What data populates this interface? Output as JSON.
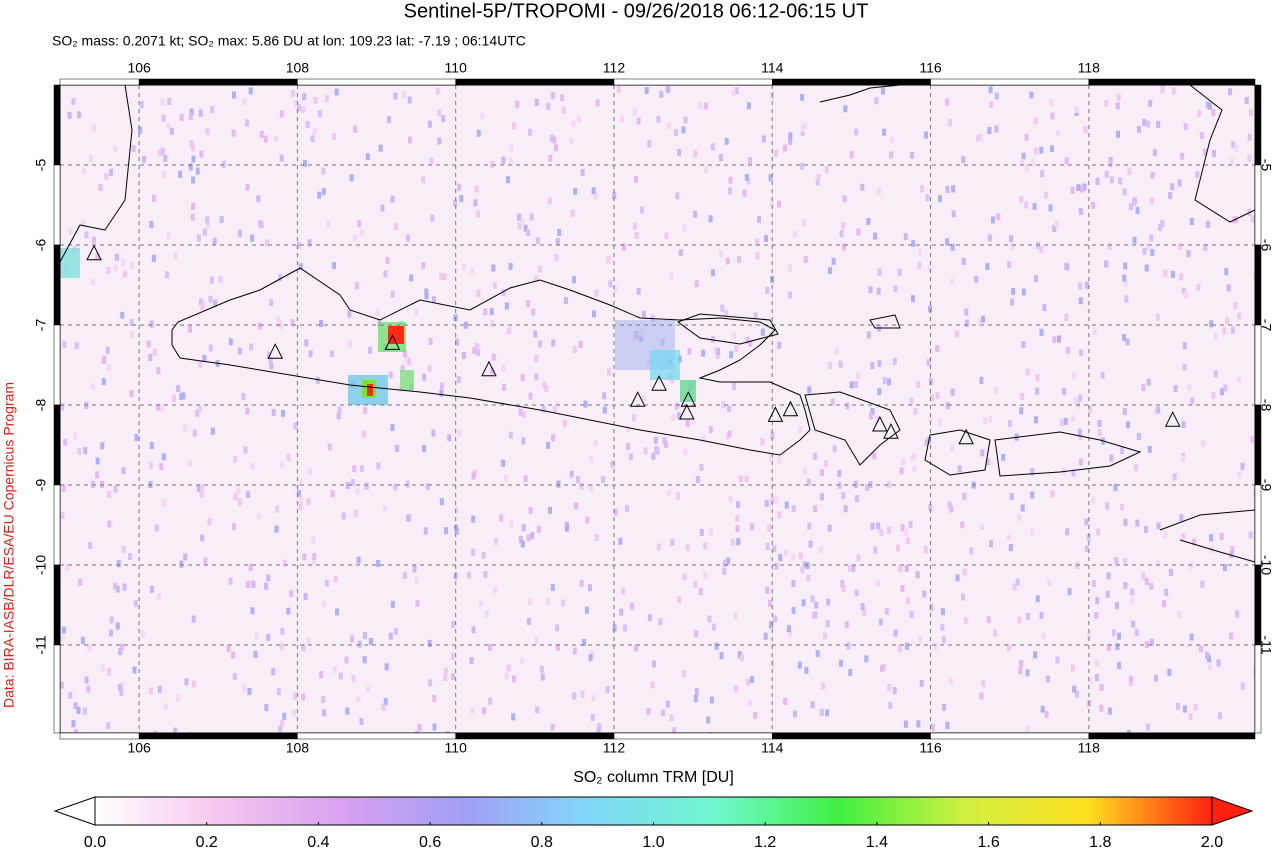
{
  "chart_data": {
    "type": "map",
    "title": "Sentinel-5P/TROPOMI - 09/26/2018 06:12-06:15 UT",
    "subtitle": "SO₂ mass: 0.2071 kt; SO₂ max: 5.86 DU at lon: 109.23 lat: -7.19 ; 06:14UTC",
    "credit": "Data: BIRA-IASB/DLR/ESA/EU Copernicus Program",
    "xlim": [
      105,
      120.1
    ],
    "ylim": [
      -12.1,
      -4
    ],
    "xticks": [
      106,
      108,
      110,
      112,
      114,
      116,
      118
    ],
    "yticks": [
      -5,
      -6,
      -7,
      -8,
      -9,
      -10,
      -11
    ],
    "grid": true,
    "volcanoes": {
      "lon": [
        105.43,
        107.72,
        109.2,
        110.42,
        112.3,
        112.57,
        112.94,
        112.92,
        114.04,
        114.23,
        115.36,
        115.5,
        116.45,
        119.06
      ],
      "lat": [
        -6.11,
        -7.34,
        -7.23,
        -7.56,
        -7.94,
        -7.74,
        -7.94,
        -8.1,
        -8.13,
        -8.06,
        -8.25,
        -8.34,
        -8.41,
        -8.19
      ]
    },
    "colorbar": {
      "label": "SO₂ column TRM [DU]",
      "lim": [
        0,
        2
      ],
      "ticks": [
        {
          "value": 0,
          "label": "0.0"
        },
        {
          "value": 0.2,
          "label": "0.2"
        },
        {
          "value": 0.4,
          "label": "0.4"
        },
        {
          "value": 0.6,
          "label": "0.6"
        },
        {
          "value": 0.8,
          "label": "0.8"
        },
        {
          "value": 1,
          "label": "1.0"
        },
        {
          "value": 1.2,
          "label": "1.2"
        },
        {
          "value": 1.4,
          "label": "1.4"
        },
        {
          "value": 1.6,
          "label": "1.6"
        },
        {
          "value": 1.8,
          "label": "1.8"
        },
        {
          "value": 2,
          "label": "2.0"
        }
      ],
      "colors": [
        "#ffffff",
        "#f7c6ef",
        "#d8a0f0",
        "#a0a0f5",
        "#80d8f8",
        "#70f8d0",
        "#40f040",
        "#d0f040",
        "#ffe020",
        "#ff2010"
      ]
    }
  }
}
